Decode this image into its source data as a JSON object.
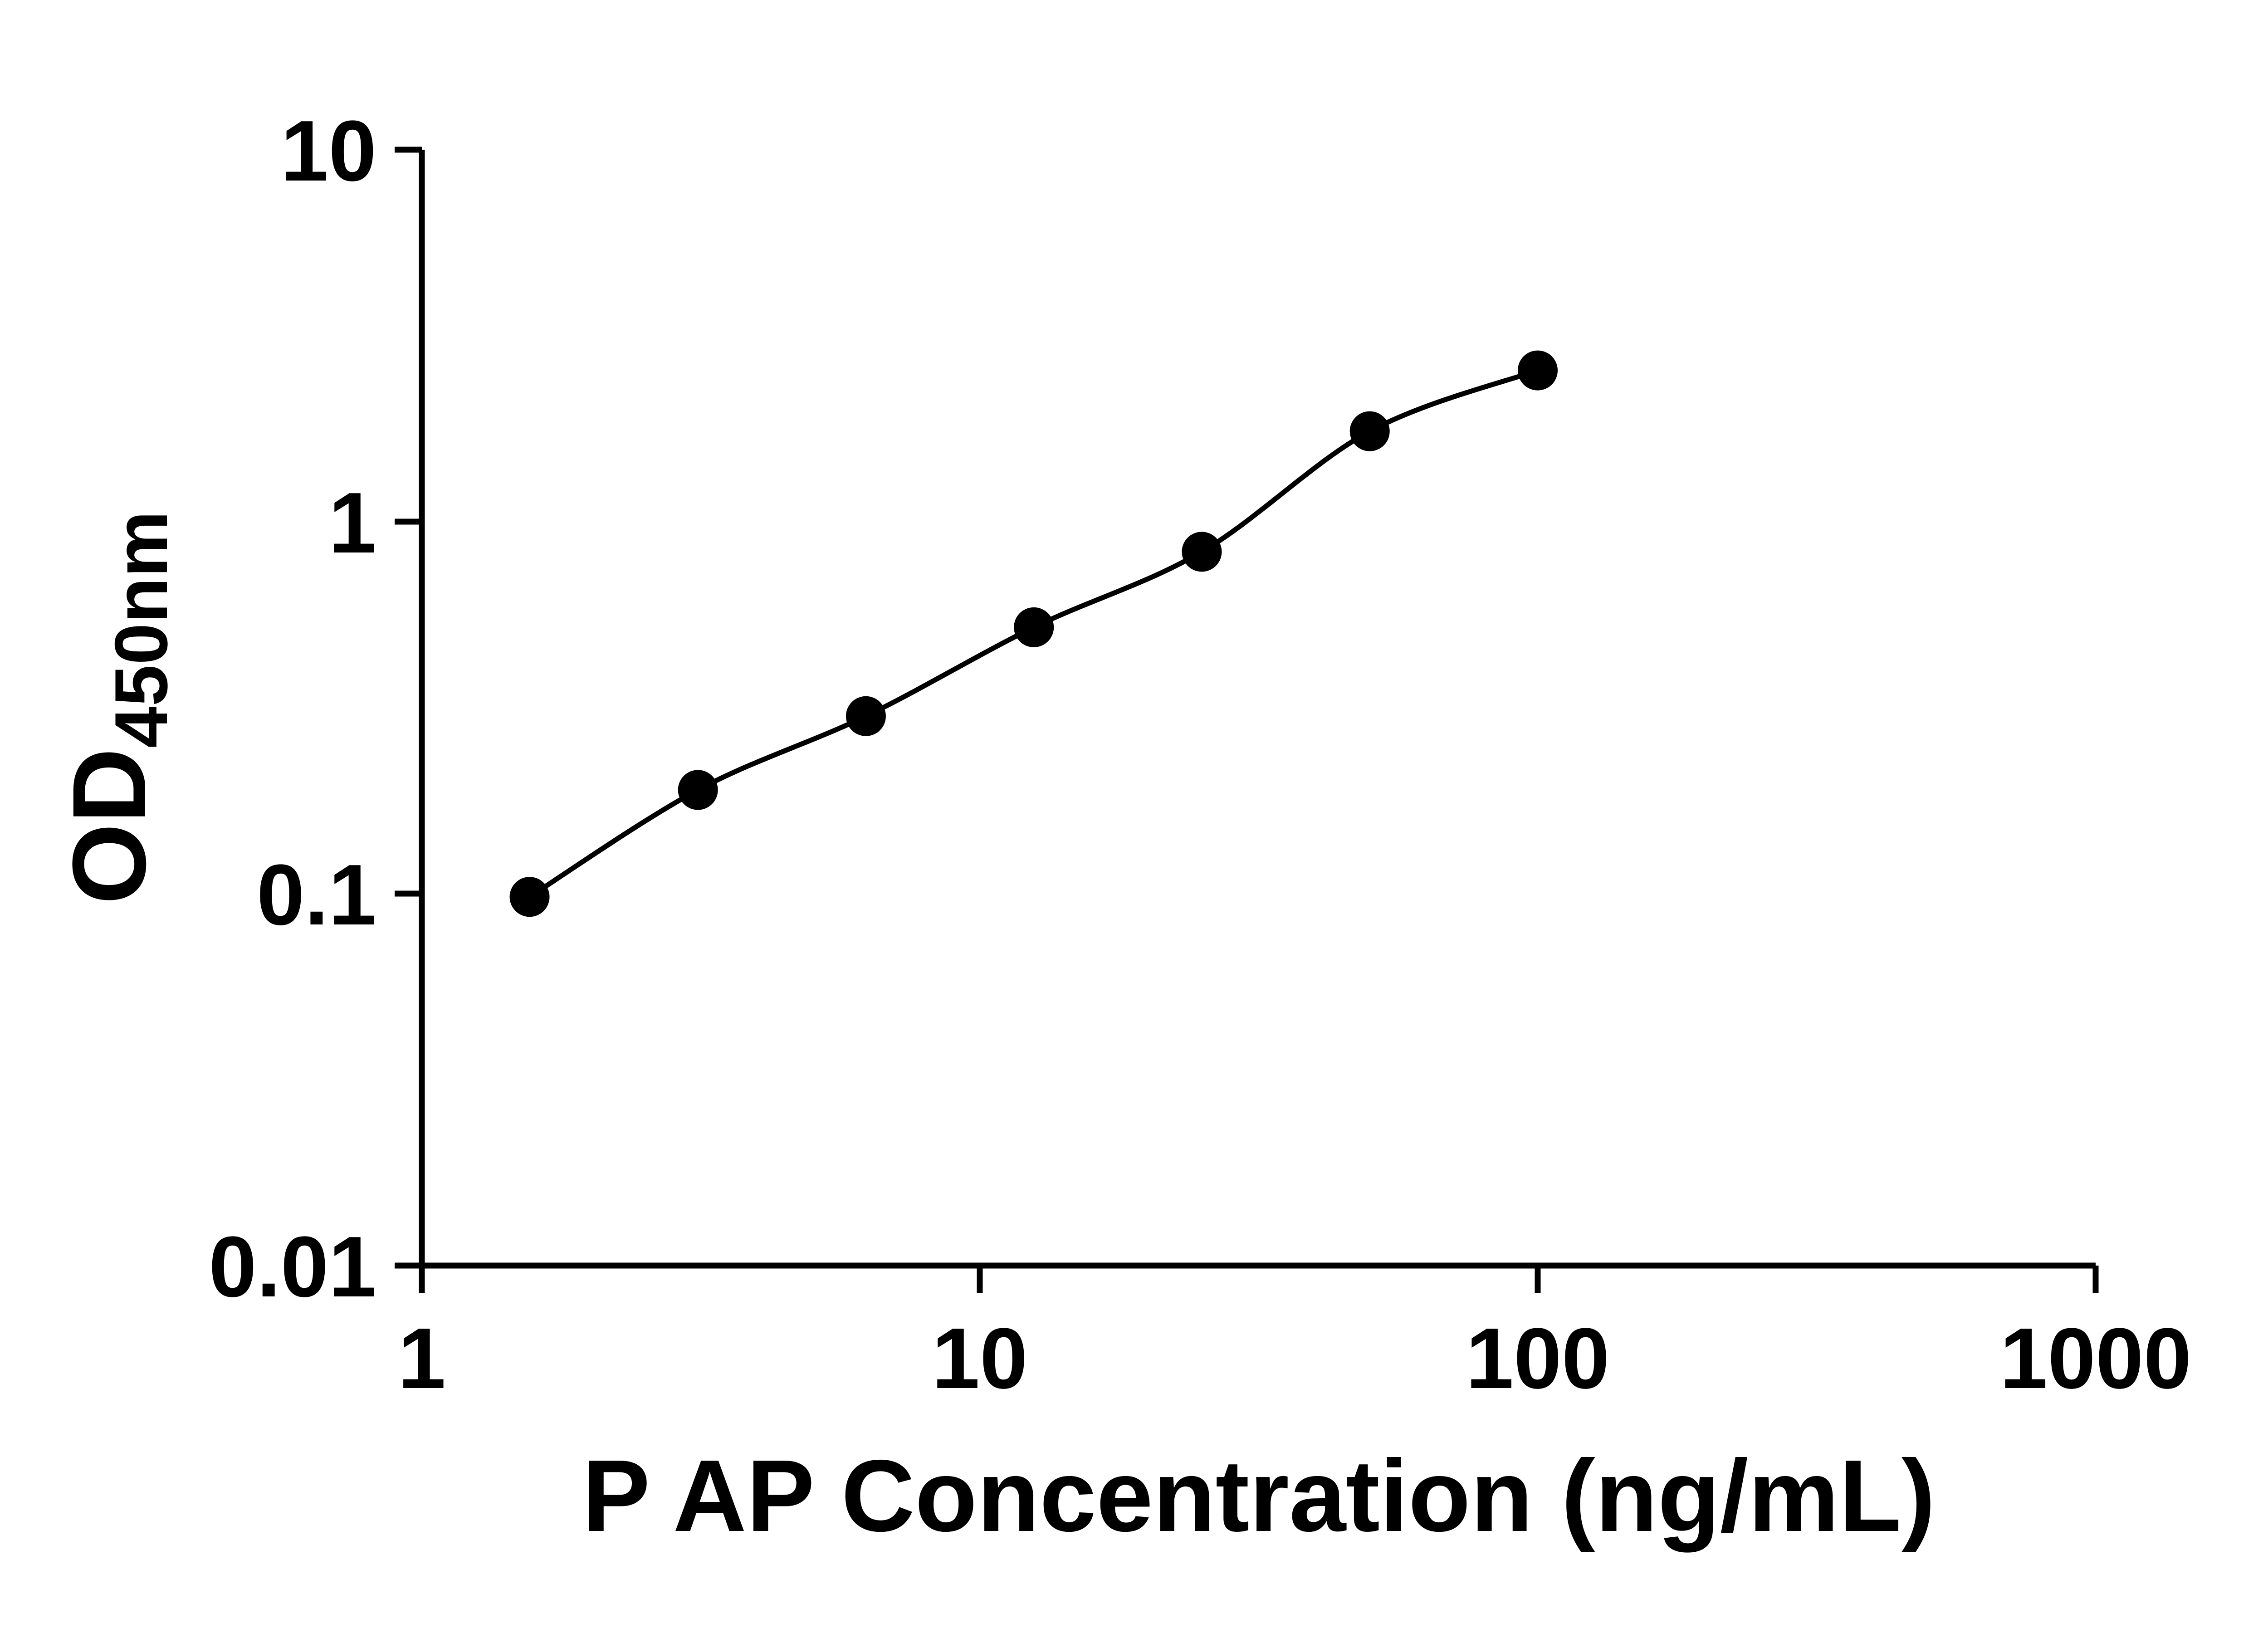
{
  "chart_data": {
    "type": "scatter",
    "subtype": "log-log standard curve with fitted line",
    "x": [
      1.56,
      3.125,
      6.25,
      12.5,
      25,
      50,
      100
    ],
    "y": [
      0.098,
      0.19,
      0.3,
      0.52,
      0.83,
      1.75,
      2.55
    ],
    "xlabel": "P AP Concentration (ng/mL)",
    "ylabel": {
      "main": "OD",
      "subscript": "450nm"
    },
    "x_scale": "log",
    "y_scale": "log",
    "xlog_range": [
      0,
      3
    ],
    "ylog_range": [
      -2,
      1
    ],
    "x_ticks": [
      {
        "value": 1,
        "label": "1"
      },
      {
        "value": 10,
        "label": "10"
      },
      {
        "value": 100,
        "label": "100"
      },
      {
        "value": 1000,
        "label": "1000"
      }
    ],
    "y_ticks": [
      {
        "value": 0.01,
        "label": "0.01"
      },
      {
        "value": 0.1,
        "label": "0.1"
      },
      {
        "value": 1,
        "label": "1"
      },
      {
        "value": 10,
        "label": "10"
      }
    ],
    "grid": "off",
    "legend": "none",
    "marker_color": "#000000",
    "line_color": "#000000",
    "background_color": "#ffffff"
  }
}
